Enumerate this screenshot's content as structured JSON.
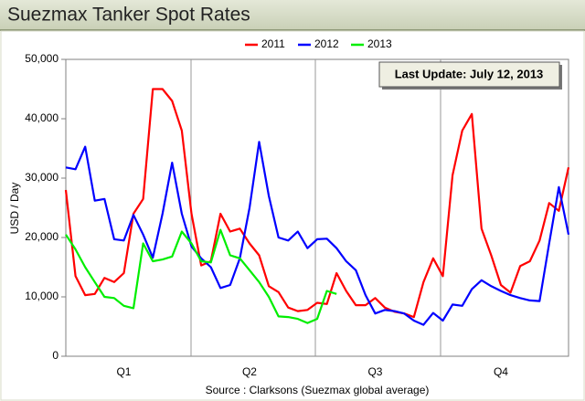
{
  "chart_data": {
    "type": "line",
    "title": "Suezmax Tanker Spot Rates",
    "ylabel": "USD / Day",
    "annotation": "Last Update: July 12, 2013",
    "source": "Source : Clarksons (Suezmax global average)",
    "categories": [
      null,
      null,
      null,
      null,
      null,
      null,
      "Q1",
      null,
      null,
      null,
      null,
      null,
      null,
      null,
      null,
      null,
      null,
      null,
      null,
      "Q2",
      null,
      null,
      null,
      null,
      null,
      null,
      null,
      null,
      null,
      null,
      null,
      null,
      "Q3",
      null,
      null,
      null,
      null,
      null,
      null,
      null,
      null,
      null,
      null,
      null,
      null,
      "Q4",
      null,
      null,
      null,
      null,
      null,
      null,
      null
    ],
    "ylim": [
      0,
      50000
    ],
    "yticks": [
      0,
      {
        "value": 10000,
        "label": "10,000"
      },
      {
        "value": 20000,
        "label": "20,000"
      },
      {
        "value": 30000,
        "label": "30,000"
      },
      {
        "value": 40000,
        "label": "40,000"
      },
      {
        "value": 50000,
        "label": "50,000"
      }
    ],
    "grid": false,
    "legend": "top",
    "series": [
      {
        "name": "2011",
        "color": "#ff0000",
        "values": [
          28000,
          13500,
          10300,
          10500,
          13200,
          12500,
          14000,
          24000,
          26500,
          45000,
          45000,
          43000,
          38000,
          24000,
          15300,
          16000,
          24000,
          21000,
          21500,
          19000,
          17000,
          11800,
          10800,
          8200,
          7600,
          7800,
          9000,
          8800,
          14000,
          11000,
          8600,
          8600,
          9800,
          8200,
          7500,
          7200,
          6600,
          12500,
          16500,
          13500,
          30500,
          38000,
          40800,
          21500,
          17000,
          12000,
          10700,
          15200,
          16000,
          19500,
          25800,
          24500,
          31800
        ]
      },
      {
        "name": "2012",
        "color": "#0000ff",
        "values": [
          31800,
          31500,
          35300,
          26200,
          26500,
          19700,
          19500,
          23800,
          20500,
          16600,
          24000,
          32600,
          24000,
          18500,
          16500,
          15000,
          11500,
          12000,
          16500,
          25000,
          36100,
          27000,
          20000,
          19500,
          21000,
          18200,
          19700,
          19800,
          18200,
          16000,
          14500,
          10300,
          7200,
          7800,
          7600,
          7200,
          6000,
          5300,
          7300,
          6000,
          8700,
          8500,
          11300,
          12800,
          11800,
          11000,
          10300,
          9800,
          9400,
          9300,
          19000,
          28500,
          20500
        ]
      },
      {
        "name": "2013",
        "color": "#00ee00",
        "values": [
          20500,
          18000,
          15000,
          12500,
          10000,
          9800,
          8500,
          8100,
          19000,
          16000,
          16300,
          16800,
          21000,
          19000,
          16000,
          15800,
          21300,
          17000,
          16500,
          14500,
          12500,
          10000,
          6700,
          6600,
          6300,
          5600,
          6300,
          11000,
          10500,
          null,
          null,
          null,
          null,
          null,
          null,
          null,
          null,
          null,
          null,
          null,
          null,
          null,
          null,
          null,
          null,
          null,
          null,
          null,
          null,
          null,
          null,
          null,
          null
        ]
      }
    ]
  }
}
